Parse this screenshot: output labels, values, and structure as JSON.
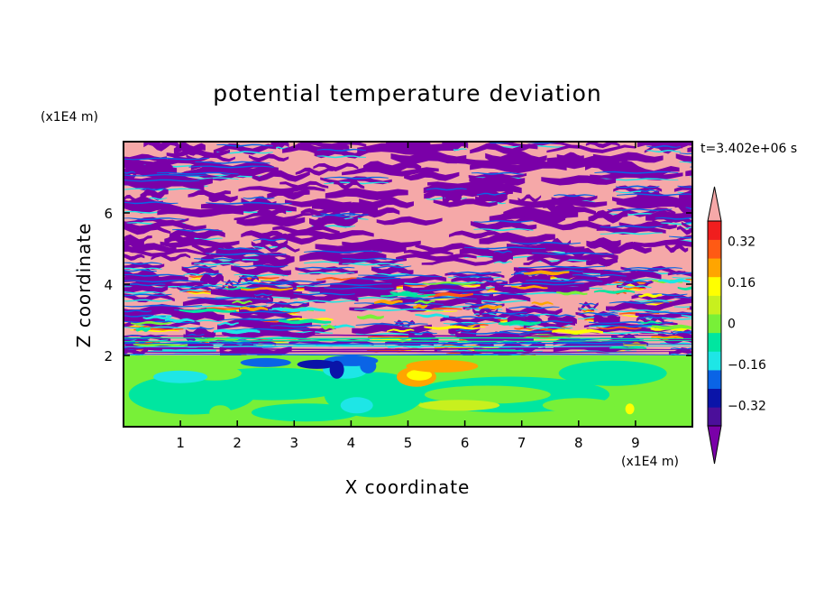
{
  "chart_data": {
    "type": "heatmap",
    "title": "potential temperature deviation",
    "xlabel": "X coordinate",
    "ylabel": "Z coordinate",
    "x_unit": "(x1E4 m)",
    "y_unit": "(x1E4 m)",
    "time_label": "t=3.402e+06 s",
    "xlim": [
      0,
      10
    ],
    "ylim": [
      0,
      8
    ],
    "x_ticks": [
      "1",
      "2",
      "3",
      "4",
      "5",
      "6",
      "7",
      "8",
      "9"
    ],
    "y_ticks": [
      "2",
      "4",
      "6"
    ],
    "grid": false,
    "legend_placement": "right",
    "colorbar": {
      "levels": [
        -0.48,
        -0.4,
        -0.32,
        -0.24,
        -0.16,
        -0.08,
        0,
        0.08,
        0.16,
        0.24,
        0.32,
        0.4,
        0.48
      ],
      "labels": [
        "0.32",
        "0.16",
        "0",
        "-0.16",
        "-0.32"
      ],
      "label_values": [
        0.32,
        0.16,
        0,
        -0.16,
        -0.32
      ],
      "colors": [
        "#7a00a8",
        "#4b0f9a",
        "#0a14a8",
        "#0a64e6",
        "#1ee6e6",
        "#00e6a0",
        "#78f038",
        "#c8f01e",
        "#ffff00",
        "#ffa500",
        "#ff5a14",
        "#f01e1e",
        "#f5a8a8"
      ]
    }
  }
}
